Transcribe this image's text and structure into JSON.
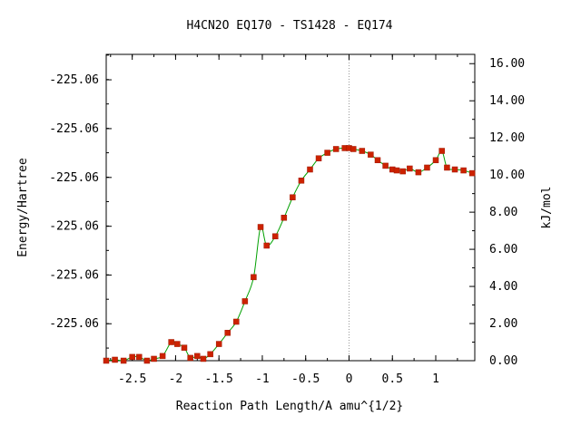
{
  "chart_data": {
    "type": "line",
    "title": "H4CN2O   EQ170 - TS1428 - EQ174",
    "xlabel": "Reaction Path Length/A amu^{1/2}",
    "ylabel_left": "Energy/Hartree",
    "ylabel_right": "kJ/mol",
    "xlim": [
      -2.8,
      1.45
    ],
    "ylim_right": [
      0,
      16.5
    ],
    "x_ticks": [
      -2.5,
      -2,
      -1.5,
      -1,
      -0.5,
      0,
      0.5,
      1
    ],
    "x_tick_labels": [
      "-2.5",
      "-2",
      "-1.5",
      "-1",
      "-0.5",
      "0",
      "0.5",
      "1"
    ],
    "left_ticks_kj": [
      1.99,
      4.61,
      7.24,
      9.87,
      12.5,
      15.13
    ],
    "left_tick_labels": [
      "-225.06",
      "-225.06",
      "-225.06",
      "-225.06",
      "-225.06",
      "-225.06"
    ],
    "right_ticks": [
      0,
      2,
      4,
      6,
      8,
      10,
      12,
      14,
      16
    ],
    "right_tick_labels": [
      "0.00",
      "2.00",
      "4.00",
      "6.00",
      "8.00",
      "10.00",
      "12.00",
      "14.00",
      "16.00"
    ],
    "ts_marker_x": 0,
    "line_color": "#00a000",
    "marker_color": "#cc2200",
    "series": [
      {
        "x": [
          -2.8,
          -2.7,
          -2.6,
          -2.5,
          -2.42,
          -2.33,
          -2.25,
          -2.15,
          -2.05,
          -1.98,
          -1.9,
          -1.83,
          -1.75,
          -1.68,
          -1.6,
          -1.5,
          -1.4,
          -1.3,
          -1.2,
          -1.1,
          -1.02,
          -0.95,
          -0.85,
          -0.75,
          -0.65,
          -0.55,
          -0.45,
          -0.35,
          -0.25,
          -0.15,
          -0.05,
          0,
          0.05,
          0.15,
          0.25,
          0.33,
          0.42,
          0.5,
          0.55,
          0.62,
          0.7,
          0.8,
          0.9,
          1.0,
          1.07,
          1.13,
          1.22,
          1.32,
          1.42
        ],
        "y": [
          0.0,
          0.05,
          0.0,
          0.2,
          0.2,
          0.0,
          0.1,
          0.25,
          1.0,
          0.9,
          0.7,
          0.15,
          0.25,
          0.1,
          0.35,
          0.9,
          1.5,
          2.1,
          3.2,
          4.5,
          7.2,
          6.2,
          6.7,
          7.7,
          8.8,
          9.7,
          10.3,
          10.9,
          11.2,
          11.4,
          11.45,
          11.45,
          11.4,
          11.3,
          11.1,
          10.8,
          10.5,
          10.3,
          10.25,
          10.2,
          10.35,
          10.15,
          10.4,
          10.8,
          11.3,
          10.4,
          10.3,
          10.25,
          10.1
        ]
      }
    ]
  }
}
